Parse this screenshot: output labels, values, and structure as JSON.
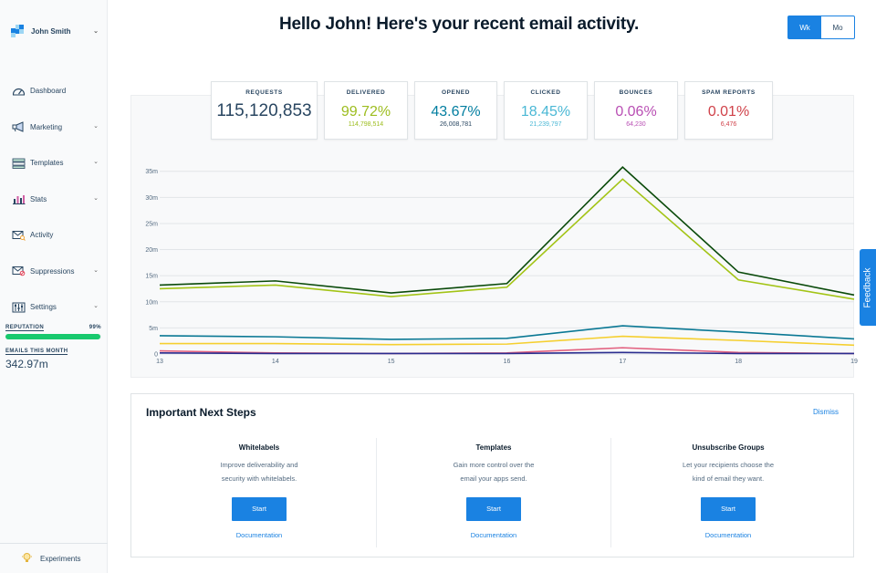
{
  "sidebar": {
    "user_name": "John Smith",
    "items": [
      {
        "label": "Dashboard",
        "icon": "gauge-icon",
        "chevron": false
      },
      {
        "label": "Marketing",
        "icon": "megaphone-icon",
        "chevron": true
      },
      {
        "label": "Templates",
        "icon": "template-icon",
        "chevron": true
      },
      {
        "label": "Stats",
        "icon": "bar-chart-icon",
        "chevron": true
      },
      {
        "label": "Activity",
        "icon": "envelope-search-icon",
        "chevron": false
      },
      {
        "label": "Suppressions",
        "icon": "envelope-block-icon",
        "chevron": true
      },
      {
        "label": "Settings",
        "icon": "sliders-icon",
        "chevron": true
      }
    ],
    "reputation_label": "REPUTATION",
    "reputation_value": "99%",
    "reputation_fraction": 0.99,
    "emails_label": "EMAILS THIS MONTH",
    "emails_value": "342.97m",
    "experiments": "Experiments"
  },
  "header": {
    "title": "Hello John! Here's your recent email activity.",
    "toggle_wk": "Wk",
    "toggle_mo": "Mo"
  },
  "stats": {
    "requests": {
      "label": "REQUESTS",
      "value": "115,120,853"
    },
    "delivered": {
      "label": "DELIVERED",
      "value": "99.72%",
      "sub": "114,798,514",
      "color": "#9dbd1f"
    },
    "opened": {
      "label": "OPENED",
      "value": "43.67%",
      "sub": "26,008,781",
      "color": "#027ea0"
    },
    "clicked": {
      "label": "CLICKED",
      "value": "18.45%",
      "sub": "21,239,797",
      "color": "#4bb8d5"
    },
    "bounces": {
      "label": "BOUNCES",
      "value": "0.06%",
      "sub": "64,230",
      "color": "#b94fb4"
    },
    "spam": {
      "label": "SPAM REPORTS",
      "value": "0.01%",
      "sub": "6,476",
      "color": "#d0424a"
    }
  },
  "chart_data": {
    "type": "line",
    "x": [
      "13",
      "14",
      "15",
      "16",
      "17",
      "18",
      "19"
    ],
    "y_ticks": [
      "0",
      "5m",
      "10m",
      "15m",
      "20m",
      "25m",
      "30m",
      "35m"
    ],
    "ylim": [
      0,
      35
    ],
    "grid": true,
    "series": [
      {
        "color": "#0a4a0a",
        "values": [
          13.2,
          14.0,
          11.7,
          13.5,
          35.8,
          15.7,
          11.3
        ]
      },
      {
        "color": "#a3c416",
        "values": [
          12.5,
          13.2,
          11.0,
          12.8,
          33.5,
          14.2,
          10.5
        ]
      },
      {
        "color": "#0a7894",
        "values": [
          3.5,
          3.3,
          2.8,
          3.0,
          5.4,
          4.2,
          2.9
        ]
      },
      {
        "color": "#f5cf2f",
        "values": [
          2.0,
          2.0,
          1.8,
          1.9,
          3.4,
          2.6,
          1.7
        ]
      },
      {
        "color": "#e2607f",
        "values": [
          0.6,
          0.2,
          0.1,
          0.2,
          1.2,
          0.3,
          0.1
        ]
      },
      {
        "color": "#2a2d8f",
        "values": [
          0.2,
          0.1,
          0.1,
          0.1,
          0.3,
          0.1,
          0.1
        ]
      }
    ]
  },
  "next_steps": {
    "title": "Important Next Steps",
    "dismiss": "Dismiss",
    "items": [
      {
        "title": "Whitelabels",
        "line1": "Improve deliverability and",
        "line2": "security with whitelabels.",
        "button": "Start",
        "link": "Documentation"
      },
      {
        "title": "Templates",
        "line1": "Gain more control over the",
        "line2": "email your apps send.",
        "button": "Start",
        "link": "Documentation"
      },
      {
        "title": "Unsubscribe Groups",
        "line1": "Let your recipients choose the",
        "line2": "kind of email they want.",
        "button": "Start",
        "link": "Documentation"
      }
    ]
  },
  "feedback": "Feedback"
}
